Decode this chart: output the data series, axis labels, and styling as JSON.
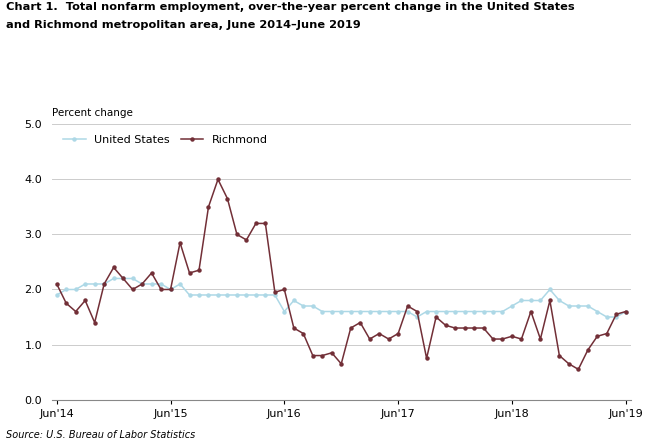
{
  "title_line1": "Chart 1.  Total nonfarm employment, over-the-year percent change in the United States",
  "title_line2": "and Richmond metropolitan area, June 2014–June 2019",
  "ylabel": "Percent change",
  "source": "Source: U.S. Bureau of Labor Statistics",
  "ylim": [
    0.0,
    5.0
  ],
  "yticks": [
    0.0,
    1.0,
    2.0,
    3.0,
    4.0,
    5.0
  ],
  "us_color": "#add8e6",
  "richmond_color": "#722F37",
  "us_label": "United States",
  "richmond_label": "Richmond",
  "xtick_labels": [
    "Jun'14",
    "Jun'15",
    "Jun'16",
    "Jun'17",
    "Jun'18",
    "Jun'19"
  ],
  "xtick_positions": [
    0,
    12,
    24,
    36,
    48,
    60
  ],
  "us_data": [
    1.9,
    2.0,
    2.0,
    2.1,
    2.1,
    2.1,
    2.2,
    2.2,
    2.2,
    2.1,
    2.1,
    2.1,
    2.0,
    2.1,
    1.9,
    1.9,
    1.9,
    1.9,
    1.9,
    1.9,
    1.9,
    1.9,
    1.9,
    1.9,
    1.6,
    1.8,
    1.7,
    1.7,
    1.6,
    1.6,
    1.6,
    1.6,
    1.6,
    1.6,
    1.6,
    1.6,
    1.6,
    1.6,
    1.5,
    1.6,
    1.6,
    1.6,
    1.6,
    1.6,
    1.6,
    1.6,
    1.6,
    1.6,
    1.7,
    1.8,
    1.8,
    1.8,
    2.0,
    1.8,
    1.7,
    1.7,
    1.7,
    1.6,
    1.5,
    1.5,
    1.6
  ],
  "richmond_data": [
    2.1,
    1.75,
    1.6,
    1.8,
    1.4,
    2.1,
    2.4,
    2.2,
    2.0,
    2.1,
    2.3,
    2.0,
    2.0,
    2.85,
    2.3,
    2.35,
    3.5,
    4.0,
    3.65,
    3.0,
    2.9,
    3.2,
    3.2,
    1.95,
    2.0,
    1.3,
    1.2,
    0.8,
    0.8,
    0.85,
    0.65,
    1.3,
    1.4,
    1.1,
    1.2,
    1.1,
    1.2,
    1.7,
    1.6,
    0.75,
    1.5,
    1.35,
    1.3,
    1.3,
    1.3,
    1.3,
    1.1,
    1.1,
    1.15,
    1.1,
    1.6,
    1.1,
    1.8,
    0.8,
    0.65,
    0.55,
    0.9,
    1.15,
    1.2,
    1.55,
    1.6
  ],
  "background_color": "#ffffff",
  "grid_color": "#cccccc"
}
